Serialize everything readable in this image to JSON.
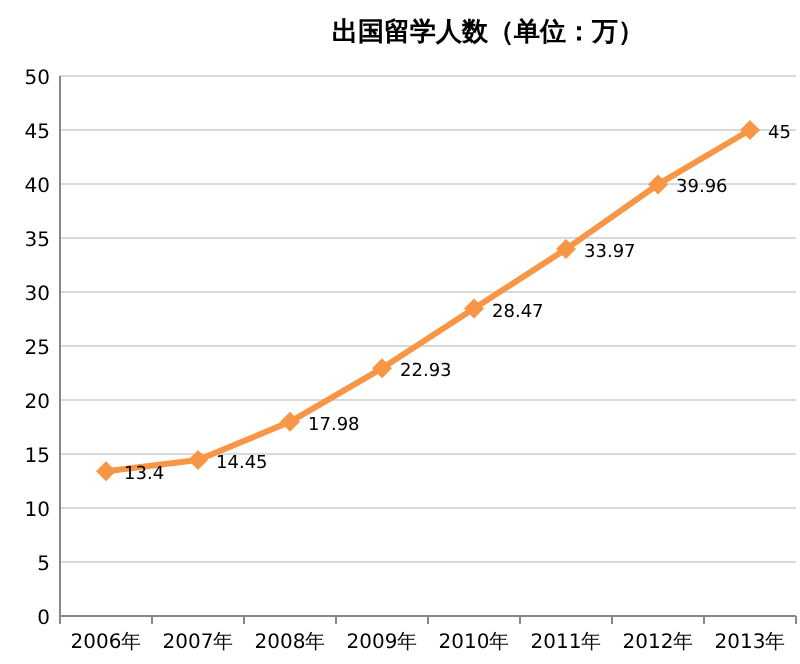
{
  "chart_data": {
    "type": "line",
    "title": "出国留学人数（单位：万）",
    "categories": [
      "2006年",
      "2007年",
      "2008年",
      "2009年",
      "2010年",
      "2011年",
      "2012年",
      "2013年"
    ],
    "series": [
      {
        "color": "#f79646",
        "values": [
          13.4,
          14.45,
          17.98,
          22.93,
          28.47,
          33.97,
          39.96,
          45
        ]
      }
    ],
    "ylim": [
      0,
      50
    ],
    "yticks": [
      0,
      5,
      10,
      15,
      20,
      25,
      30,
      35,
      40,
      45,
      50
    ],
    "grid": "y",
    "marker": "diamond",
    "line_style": "solid",
    "data_labels": true
  }
}
